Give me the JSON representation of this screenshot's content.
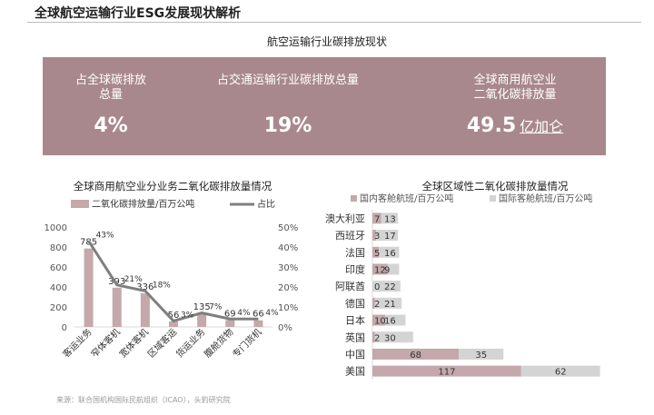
{
  "page": {
    "title": "全球航空运输行业ESG发展现状解析",
    "section_title": "航空运输行业碳排放现状",
    "source": "来源：联合国机构国际民航组织（ICAO），头豹研究院"
  },
  "metrics": [
    {
      "label": "占全球碳排放\n总量",
      "value": "4%",
      "unit": ""
    },
    {
      "label": "占交通运输行业碳排放总量",
      "value": "19%",
      "unit": ""
    },
    {
      "label": "全球商用航空业\n二氧化碳排放量",
      "value": "49.5",
      "unit": "亿加仑"
    }
  ],
  "colors": {
    "banner": "#a8888c",
    "bar_primary": "#c4a8ab",
    "bar_secondary": "#d4d4d4",
    "line": "#7f7f7f"
  },
  "chart_data": [
    {
      "type": "bar",
      "title": "全球商用航空业分业务二氧化碳排放量情况",
      "categories": [
        "客运业务",
        "窄体客机",
        "宽体客机",
        "区域客运",
        "货运业务",
        "腹舱货物",
        "专门货机"
      ],
      "series": [
        {
          "name": "二氧化碳排放量/百万公吨",
          "type": "bar",
          "values": [
            785,
            393,
            336,
            56,
            135,
            69,
            66
          ],
          "axis": "left"
        },
        {
          "name": "占比",
          "type": "line",
          "values": [
            43,
            21,
            18,
            3,
            7,
            4,
            4
          ],
          "labels": [
            "43%",
            "21%",
            "18%",
            "3%",
            "7%",
            "4%",
            "4%"
          ],
          "axis": "right"
        }
      ],
      "y_ticks": [
        "1000",
        "800",
        "600",
        "400",
        "200",
        "0"
      ],
      "y2_ticks": [
        "50%",
        "40%",
        "30%",
        "20%",
        "10%",
        "0%"
      ],
      "ylim": [
        0,
        1000
      ],
      "y2lim": [
        0,
        50
      ],
      "legend_position": "top"
    },
    {
      "type": "bar",
      "orientation": "horizontal",
      "stacked": true,
      "title": "全球区域性二氧化碳排放量情况",
      "categories": [
        "澳大利亚",
        "西班牙",
        "法国",
        "印度",
        "阿联酋",
        "德国",
        "日本",
        "英国",
        "中国",
        "美国"
      ],
      "series": [
        {
          "name": "国内客舱航班/百万公吨",
          "values": [
            7,
            3,
            5,
            12,
            0,
            2,
            10,
            2,
            68,
            117
          ]
        },
        {
          "name": "国际客舱航班/百万公吨",
          "values": [
            13,
            17,
            16,
            9,
            22,
            21,
            16,
            30,
            35,
            62
          ]
        }
      ],
      "legend_position": "top"
    }
  ]
}
